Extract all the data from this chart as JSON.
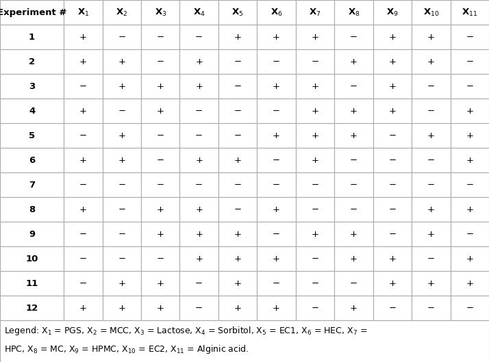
{
  "col_headers": [
    "Experiment #",
    "X_1",
    "X_2",
    "X_3",
    "X_4",
    "X_5",
    "X_6",
    "X_7",
    "X_8",
    "X_9",
    "X_10",
    "X_11"
  ],
  "rows": [
    [
      "1",
      "+",
      "−",
      "−",
      "−",
      "+",
      "+",
      "+",
      "−",
      "+",
      "+",
      "−"
    ],
    [
      "2",
      "+",
      "+",
      "−",
      "+",
      "−",
      "−",
      "−",
      "+",
      "+",
      "+",
      "−"
    ],
    [
      "3",
      "−",
      "+",
      "+",
      "+",
      "−",
      "+",
      "+",
      "−",
      "+",
      "−",
      "−"
    ],
    [
      "4",
      "+",
      "−",
      "+",
      "−",
      "−",
      "−",
      "+",
      "+",
      "+",
      "−",
      "+"
    ],
    [
      "5",
      "−",
      "+",
      "−",
      "−",
      "−",
      "+",
      "+",
      "+",
      "−",
      "+",
      "+"
    ],
    [
      "6",
      "+",
      "+",
      "−",
      "+",
      "+",
      "−",
      "+",
      "−",
      "−",
      "−",
      "+"
    ],
    [
      "7",
      "−",
      "−",
      "−",
      "−",
      "−",
      "−",
      "−",
      "−",
      "−",
      "−",
      "−"
    ],
    [
      "8",
      "+",
      "−",
      "+",
      "+",
      "−",
      "+",
      "−",
      "−",
      "−",
      "+",
      "+"
    ],
    [
      "9",
      "−",
      "−",
      "+",
      "+",
      "+",
      "−",
      "+",
      "+",
      "−",
      "+",
      "−"
    ],
    [
      "10",
      "−",
      "−",
      "−",
      "+",
      "+",
      "+",
      "−",
      "+",
      "+",
      "−",
      "+"
    ],
    [
      "11",
      "−",
      "+",
      "+",
      "−",
      "+",
      "−",
      "−",
      "−",
      "+",
      "+",
      "+"
    ],
    [
      "12",
      "+",
      "+",
      "+",
      "−",
      "+",
      "+",
      "−",
      "+",
      "−",
      "−",
      "−"
    ]
  ],
  "border_color": "#aaaaaa",
  "font_size": 9.5,
  "header_font_size": 9.5,
  "legend_line1": "Legend: X$_1$ = PGS, X$_2$ = MCC, X$_3$ = Lactose, X$_4$ = Sorbitol, X$_5$ = EC1, X$_6$ = HEC, X$_7$ =",
  "legend_line2": "HPC, X$_8$ = MC, X$_9$ = HPMC, X$_{10}$ = EC2, X$_{11}$ = Alginic acid.",
  "col_subs": [
    "",
    "1",
    "2",
    "3",
    "4",
    "5",
    "6",
    "7",
    "8",
    "9",
    "10",
    "11"
  ],
  "figure_width": 7.14,
  "figure_height": 5.29,
  "dpi": 100
}
